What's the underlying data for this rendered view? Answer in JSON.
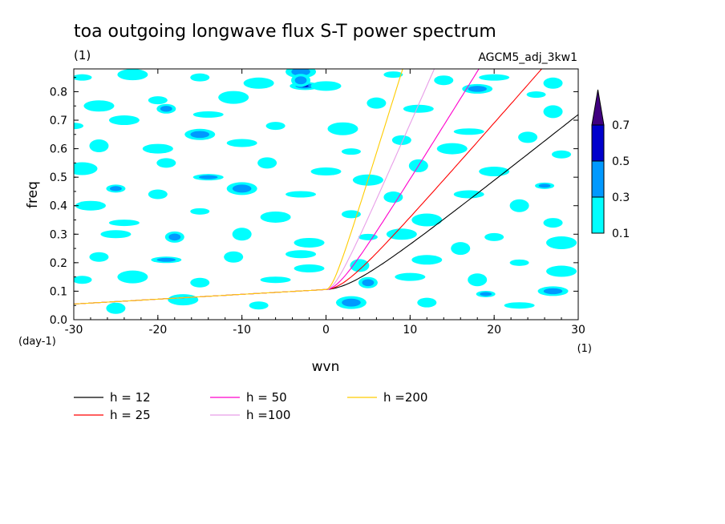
{
  "chart_data": {
    "type": "contour",
    "title": "toa outgoing longwave flux S-T power spectrum",
    "subtitle": "(1)",
    "run_label": "AGCM5_adj_3kw1",
    "xlabel": "wvn",
    "xunit": "(1)",
    "ylabel": "freq",
    "yunit": "(day-1)",
    "xlim": [
      -30,
      30
    ],
    "ylim": [
      0,
      0.88
    ],
    "xticks": [
      -30,
      -20,
      -10,
      0,
      10,
      20,
      30
    ],
    "xtick_labels": [
      "-30",
      "-20",
      "-10",
      "0",
      "10",
      "20",
      "30"
    ],
    "yticks": [
      0,
      0.1,
      0.2,
      0.3,
      0.4,
      0.5,
      0.6,
      0.7,
      0.8
    ],
    "ytick_labels": [
      "0.0",
      "0.1",
      "0.2",
      "0.3",
      "0.4",
      "0.5",
      "0.6",
      "0.7",
      "0.8"
    ],
    "colorbar": {
      "levels": [
        0.1,
        0.3,
        0.5,
        0.7
      ],
      "labels": [
        "0.1",
        "0.3",
        "0.5",
        "0.7"
      ],
      "colors": [
        "#00ffff",
        "#0099ff",
        "#0000cc",
        "#400080"
      ]
    },
    "dispersion_curves": [
      {
        "name": "h = 12",
        "h": 12,
        "color": "#000000"
      },
      {
        "name": "h = 25",
        "h": 25,
        "color": "#ff0000"
      },
      {
        "name": "h = 50",
        "h": 50,
        "color": "#ff00cc"
      },
      {
        "name": "h =100",
        "h": 100,
        "color": "#e89ee8"
      },
      {
        "name": "h =200",
        "h": 200,
        "color": "#ffcc00"
      }
    ],
    "blobs": [
      {
        "x": -29,
        "y": 0.85,
        "level": 1
      },
      {
        "x": -23,
        "y": 0.86,
        "level": 1
      },
      {
        "x": -15,
        "y": 0.85,
        "level": 1
      },
      {
        "x": -3,
        "y": 0.87,
        "level": 2
      },
      {
        "x": 14,
        "y": 0.84,
        "level": 1
      },
      {
        "x": 20,
        "y": 0.85,
        "level": 1
      },
      {
        "x": 27,
        "y": 0.83,
        "level": 1
      },
      {
        "x": -2.5,
        "y": 0.82,
        "level": 3
      },
      {
        "x": -3,
        "y": 0.84,
        "level": 2
      },
      {
        "x": 18,
        "y": 0.81,
        "level": 2
      },
      {
        "x": 25,
        "y": 0.79,
        "level": 1
      },
      {
        "x": -27,
        "y": 0.75,
        "level": 1
      },
      {
        "x": -20,
        "y": 0.77,
        "level": 1
      },
      {
        "x": -11,
        "y": 0.78,
        "level": 1
      },
      {
        "x": -19,
        "y": 0.74,
        "level": 2
      },
      {
        "x": -14,
        "y": 0.72,
        "level": 1
      },
      {
        "x": 6,
        "y": 0.76,
        "level": 1
      },
      {
        "x": 11,
        "y": 0.74,
        "level": 1
      },
      {
        "x": 27,
        "y": 0.73,
        "level": 1
      },
      {
        "x": -24,
        "y": 0.7,
        "level": 1
      },
      {
        "x": -30,
        "y": 0.68,
        "level": 1
      },
      {
        "x": -15,
        "y": 0.65,
        "level": 2
      },
      {
        "x": -6,
        "y": 0.68,
        "level": 1
      },
      {
        "x": 2,
        "y": 0.67,
        "level": 1
      },
      {
        "x": 9,
        "y": 0.63,
        "level": 1
      },
      {
        "x": 17,
        "y": 0.66,
        "level": 1
      },
      {
        "x": 24,
        "y": 0.64,
        "level": 1
      },
      {
        "x": -10,
        "y": 0.62,
        "level": 1
      },
      {
        "x": -27,
        "y": 0.61,
        "level": 1
      },
      {
        "x": -20,
        "y": 0.6,
        "level": 1
      },
      {
        "x": 3,
        "y": 0.59,
        "level": 1
      },
      {
        "x": 15,
        "y": 0.6,
        "level": 1
      },
      {
        "x": 28,
        "y": 0.58,
        "level": 1
      },
      {
        "x": -29,
        "y": 0.53,
        "level": 1
      },
      {
        "x": -19,
        "y": 0.55,
        "level": 1
      },
      {
        "x": -14,
        "y": 0.5,
        "level": 2
      },
      {
        "x": -7,
        "y": 0.55,
        "level": 1
      },
      {
        "x": 0,
        "y": 0.52,
        "level": 1
      },
      {
        "x": 11,
        "y": 0.54,
        "level": 1
      },
      {
        "x": 20,
        "y": 0.52,
        "level": 1
      },
      {
        "x": 26,
        "y": 0.47,
        "level": 2
      },
      {
        "x": 5,
        "y": 0.49,
        "level": 1
      },
      {
        "x": -25,
        "y": 0.46,
        "level": 2
      },
      {
        "x": -10,
        "y": 0.46,
        "level": 2
      },
      {
        "x": -20,
        "y": 0.44,
        "level": 1
      },
      {
        "x": -3,
        "y": 0.44,
        "level": 1
      },
      {
        "x": 8,
        "y": 0.43,
        "level": 1
      },
      {
        "x": 17,
        "y": 0.44,
        "level": 1
      },
      {
        "x": 23,
        "y": 0.4,
        "level": 1
      },
      {
        "x": -28,
        "y": 0.4,
        "level": 1
      },
      {
        "x": -15,
        "y": 0.38,
        "level": 1
      },
      {
        "x": -6,
        "y": 0.36,
        "level": 1
      },
      {
        "x": 3,
        "y": 0.37,
        "level": 1
      },
      {
        "x": 12,
        "y": 0.35,
        "level": 1
      },
      {
        "x": 27,
        "y": 0.34,
        "level": 1
      },
      {
        "x": -24,
        "y": 0.34,
        "level": 1
      },
      {
        "x": -18,
        "y": 0.29,
        "level": 2
      },
      {
        "x": -25,
        "y": 0.3,
        "level": 1
      },
      {
        "x": -10,
        "y": 0.3,
        "level": 1
      },
      {
        "x": -2,
        "y": 0.27,
        "level": 1
      },
      {
        "x": 5,
        "y": 0.29,
        "level": 1
      },
      {
        "x": 9,
        "y": 0.3,
        "level": 1
      },
      {
        "x": 20,
        "y": 0.29,
        "level": 1
      },
      {
        "x": 28,
        "y": 0.27,
        "level": 1
      },
      {
        "x": -27,
        "y": 0.22,
        "level": 1
      },
      {
        "x": -19,
        "y": 0.21,
        "level": 2
      },
      {
        "x": -11,
        "y": 0.22,
        "level": 1
      },
      {
        "x": -3,
        "y": 0.23,
        "level": 1
      },
      {
        "x": 4,
        "y": 0.19,
        "level": 1
      },
      {
        "x": 12,
        "y": 0.21,
        "level": 1
      },
      {
        "x": 23,
        "y": 0.2,
        "level": 1
      },
      {
        "x": 28,
        "y": 0.17,
        "level": 1
      },
      {
        "x": -29,
        "y": 0.14,
        "level": 1
      },
      {
        "x": -23,
        "y": 0.15,
        "level": 1
      },
      {
        "x": -15,
        "y": 0.13,
        "level": 1
      },
      {
        "x": -6,
        "y": 0.14,
        "level": 1
      },
      {
        "x": 5,
        "y": 0.13,
        "level": 2
      },
      {
        "x": 10,
        "y": 0.15,
        "level": 1
      },
      {
        "x": 18,
        "y": 0.14,
        "level": 1
      },
      {
        "x": 27,
        "y": 0.1,
        "level": 2
      },
      {
        "x": 19,
        "y": 0.09,
        "level": 2
      },
      {
        "x": -17,
        "y": 0.07,
        "level": 1
      },
      {
        "x": -8,
        "y": 0.05,
        "level": 1
      },
      {
        "x": 3,
        "y": 0.06,
        "level": 2
      },
      {
        "x": 12,
        "y": 0.06,
        "level": 1
      },
      {
        "x": 23,
        "y": 0.05,
        "level": 1
      },
      {
        "x": -25,
        "y": 0.04,
        "level": 1
      },
      {
        "x": -2,
        "y": 0.18,
        "level": 1
      },
      {
        "x": 16,
        "y": 0.25,
        "level": 1
      },
      {
        "x": 0,
        "y": 0.82,
        "level": 1
      },
      {
        "x": 8,
        "y": 0.86,
        "level": 1
      },
      {
        "x": -8,
        "y": 0.83,
        "level": 1
      }
    ]
  },
  "legend": [
    {
      "label": "h = 12",
      "color": "#000000"
    },
    {
      "label": "h = 25",
      "color": "#ff0000"
    },
    {
      "label": "h = 50",
      "color": "#ff00cc"
    },
    {
      "label": "h =100",
      "color": "#e89ee8"
    },
    {
      "label": "h =200",
      "color": "#ffcc00"
    }
  ]
}
